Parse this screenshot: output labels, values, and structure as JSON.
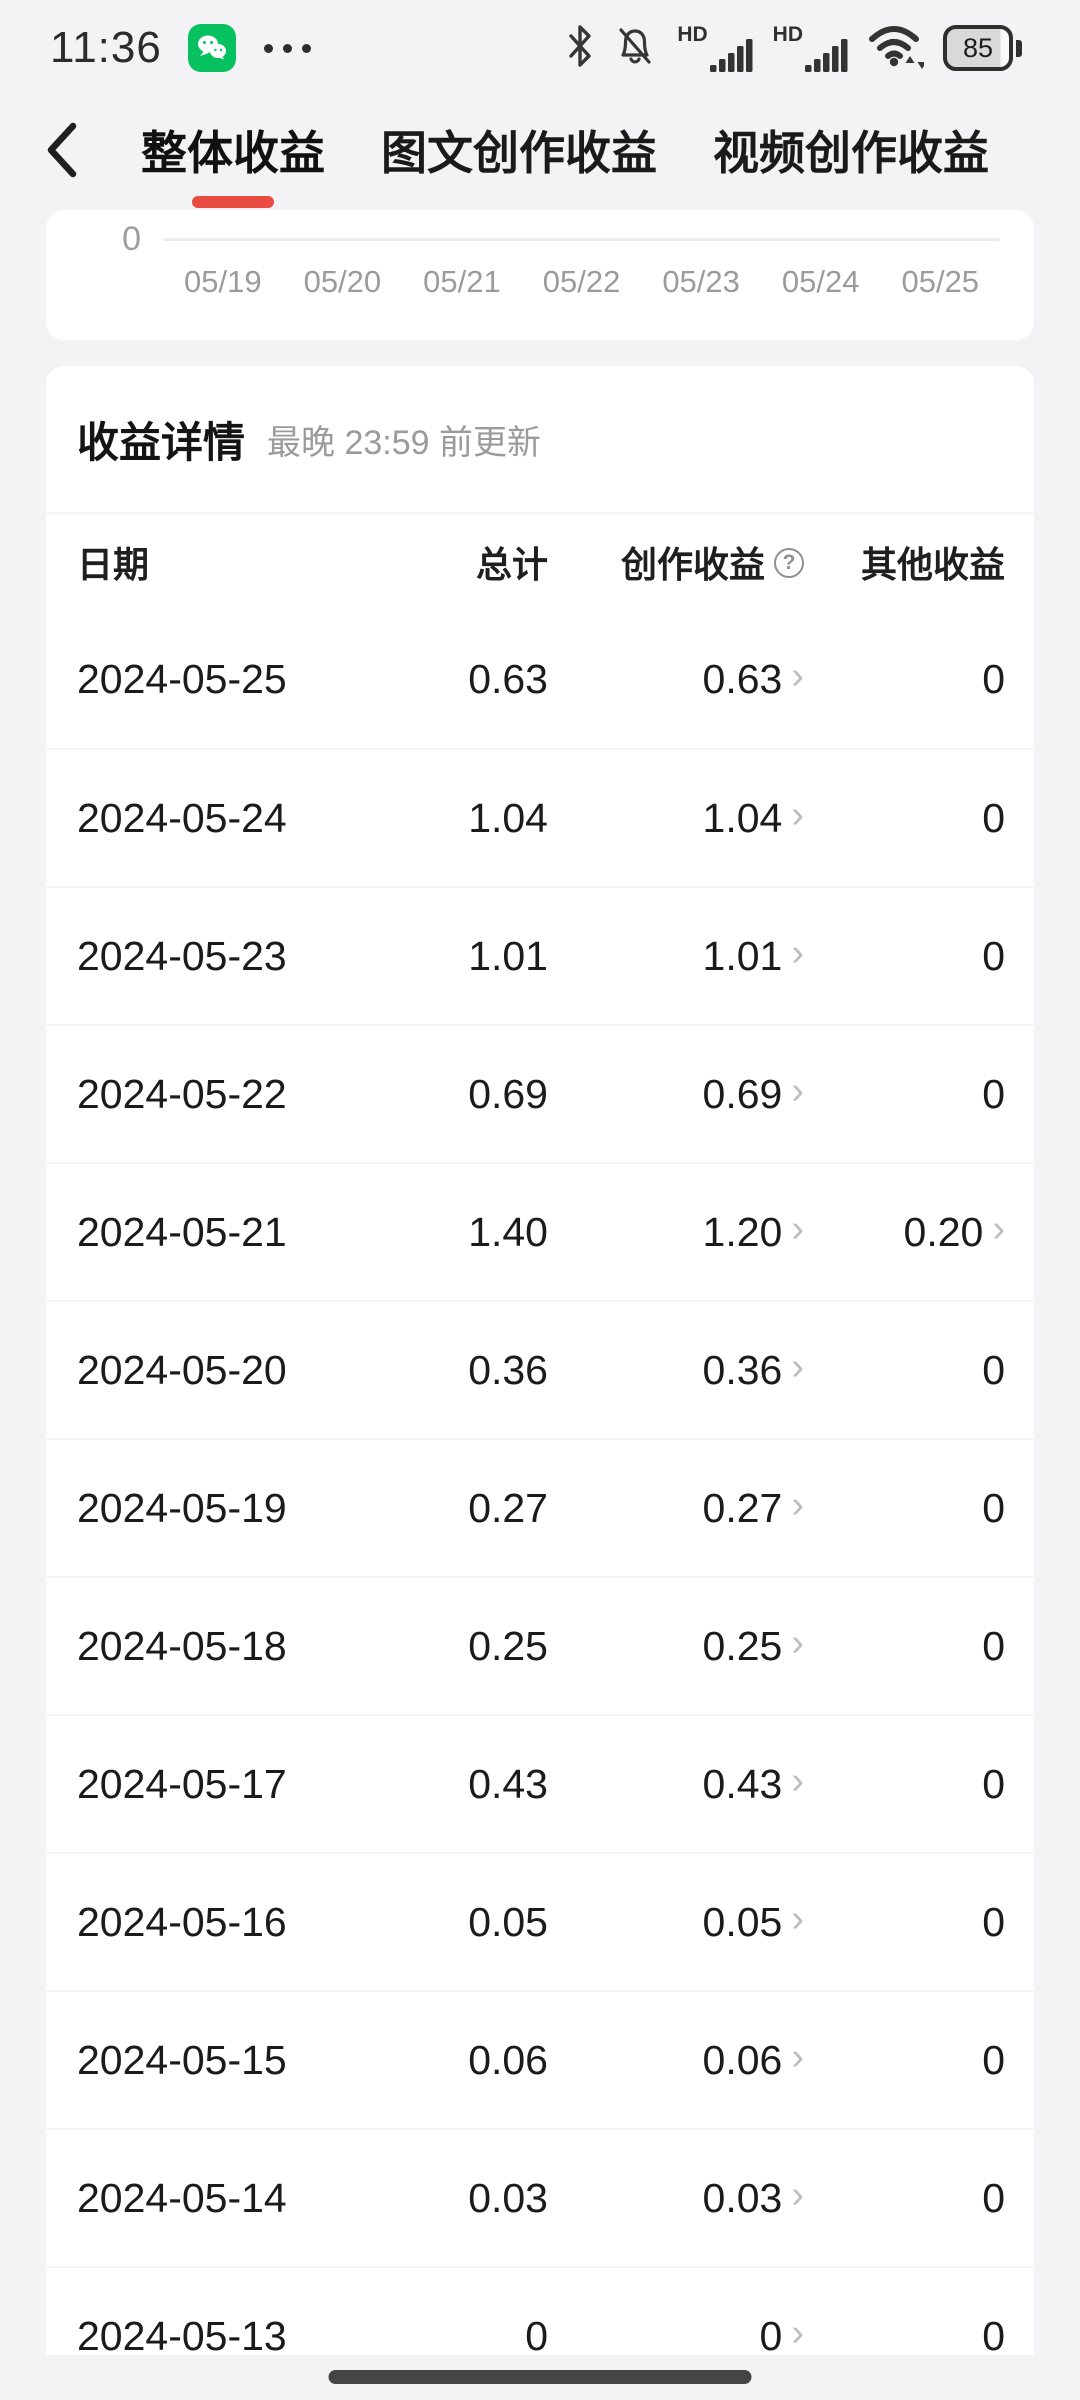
{
  "status_bar": {
    "time": "11:36",
    "battery_percent": "85",
    "icons": [
      "wechat-icon",
      "more-dots-icon",
      "bluetooth-icon",
      "bell-muted-icon",
      "sim1-hd-signal-icon",
      "sim2-hd-signal-icon",
      "wifi-icon",
      "battery-icon"
    ],
    "sim_hd_label": "HD"
  },
  "nav": {
    "tabs": [
      {
        "label": "整体收益",
        "active": true
      },
      {
        "label": "图文创作收益",
        "active": false
      },
      {
        "label": "视频创作收益",
        "active": false
      }
    ]
  },
  "chart": {
    "y_tick": "0",
    "x_labels": [
      "05/19",
      "05/20",
      "05/21",
      "05/22",
      "05/23",
      "05/24",
      "05/25"
    ]
  },
  "earnings": {
    "title": "收益详情",
    "update_note": "最晚 23:59 前更新",
    "columns": {
      "date": "日期",
      "total": "总计",
      "creation": "创作收益",
      "other": "其他收益"
    },
    "rows": [
      {
        "date": "2024-05-25",
        "total": "0.63",
        "creation": "0.63",
        "other": "0",
        "other_link": false
      },
      {
        "date": "2024-05-24",
        "total": "1.04",
        "creation": "1.04",
        "other": "0",
        "other_link": false
      },
      {
        "date": "2024-05-23",
        "total": "1.01",
        "creation": "1.01",
        "other": "0",
        "other_link": false
      },
      {
        "date": "2024-05-22",
        "total": "0.69",
        "creation": "0.69",
        "other": "0",
        "other_link": false
      },
      {
        "date": "2024-05-21",
        "total": "1.40",
        "creation": "1.20",
        "other": "0.20",
        "other_link": true
      },
      {
        "date": "2024-05-20",
        "total": "0.36",
        "creation": "0.36",
        "other": "0",
        "other_link": false
      },
      {
        "date": "2024-05-19",
        "total": "0.27",
        "creation": "0.27",
        "other": "0",
        "other_link": false
      },
      {
        "date": "2024-05-18",
        "total": "0.25",
        "creation": "0.25",
        "other": "0",
        "other_link": false
      },
      {
        "date": "2024-05-17",
        "total": "0.43",
        "creation": "0.43",
        "other": "0",
        "other_link": false
      },
      {
        "date": "2024-05-16",
        "total": "0.05",
        "creation": "0.05",
        "other": "0",
        "other_link": false
      },
      {
        "date": "2024-05-15",
        "total": "0.06",
        "creation": "0.06",
        "other": "0",
        "other_link": false
      },
      {
        "date": "2024-05-14",
        "total": "0.03",
        "creation": "0.03",
        "other": "0",
        "other_link": false
      },
      {
        "date": "2024-05-13",
        "total": "0",
        "creation": "0",
        "other": "0",
        "other_link": false
      }
    ]
  },
  "glyphs": {
    "row_chevron": "›",
    "help_mark": "?"
  },
  "colors": {
    "accent_red": "#e94b43",
    "wechat_green": "#07c160",
    "page_background": "#f3f3f5",
    "card_background": "#ffffff",
    "muted_text": "#9b9b9b"
  }
}
